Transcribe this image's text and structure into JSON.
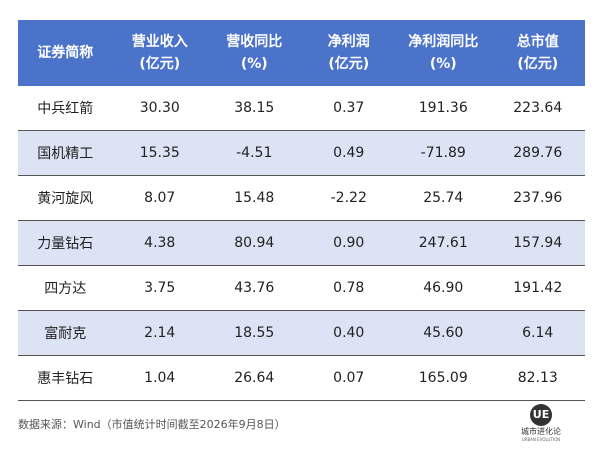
{
  "table": {
    "header": [
      [
        "证券简称"
      ],
      [
        "营业收入",
        "(亿元)"
      ],
      [
        "营收同比",
        "(%)"
      ],
      [
        "净利润",
        "(亿元)"
      ],
      [
        "净利润同比",
        "(%)"
      ],
      [
        "总市值",
        "(亿元)"
      ]
    ],
    "rows": [
      [
        "中兵红箭",
        "30.30",
        "38.15",
        "0.37",
        "191.36",
        "223.64"
      ],
      [
        "国机精工",
        "15.35",
        "-4.51",
        "0.49",
        "-71.89",
        "289.76"
      ],
      [
        "黄河旋风",
        "8.07",
        "15.48",
        "-2.22",
        "25.74",
        "237.96"
      ],
      [
        "力量钻石",
        "4.38",
        "80.94",
        "0.90",
        "247.61",
        "157.94"
      ],
      [
        "四方达",
        "3.75",
        "43.76",
        "0.78",
        "46.90",
        "191.42"
      ],
      [
        "富耐克",
        "2.14",
        "18.55",
        "0.40",
        "45.60",
        "6.14"
      ],
      [
        "惠丰钻石",
        "1.04",
        "26.64",
        "0.07",
        "165.09",
        "82.13"
      ]
    ]
  },
  "footer": {
    "source": "数据来源：Wind（市值统计时间截至2026年9月8日）"
  },
  "logo": {
    "mark": "UE",
    "name": "城市进化论",
    "name_en": "URBAN EVOLUTION"
  }
}
